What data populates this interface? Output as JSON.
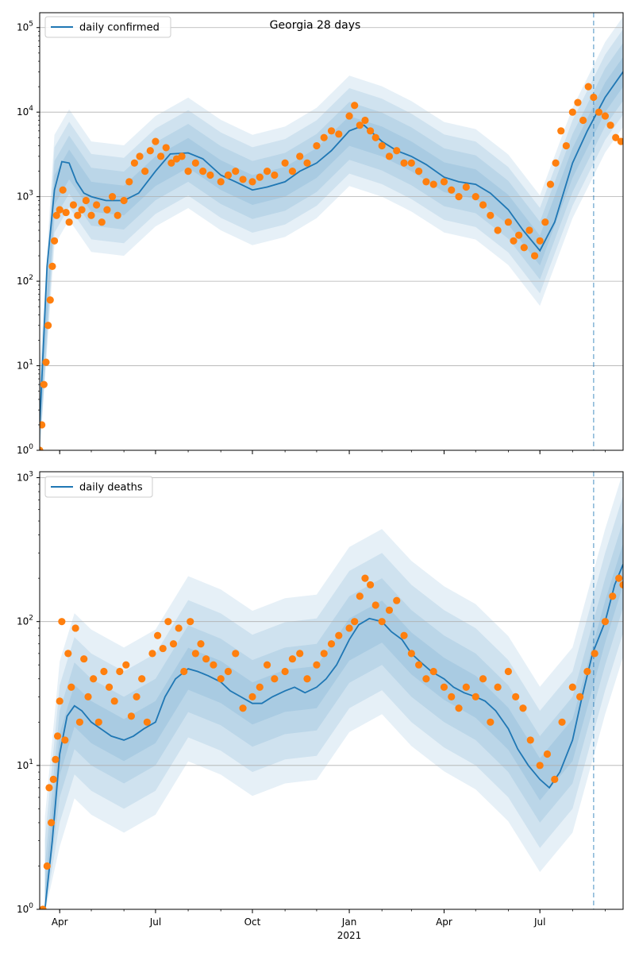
{
  "chart_data": [
    {
      "type": "line",
      "title": "Georgia 28 days",
      "yscale": "log",
      "ylim": [
        1,
        150000
      ],
      "xlim": [
        "2020-03-13",
        "2021-09-18"
      ],
      "x_ticks": [
        "Apr",
        "Jul",
        "Oct",
        "Jan",
        "Apr",
        "Jul"
      ],
      "x_tick_dates": [
        "2020-04-01",
        "2020-07-01",
        "2020-10-01",
        "2021-01-01",
        "2021-04-01",
        "2021-07-01"
      ],
      "y_ticks": [
        1,
        10,
        100,
        1000,
        10000,
        100000
      ],
      "y_tick_labels": [
        {
          "base": "10",
          "exp": "0"
        },
        {
          "base": "10",
          "exp": "1"
        },
        {
          "base": "10",
          "exp": "2"
        },
        {
          "base": "10",
          "exp": "3"
        },
        {
          "base": "10",
          "exp": "4"
        },
        {
          "base": "10",
          "exp": "5"
        }
      ],
      "grid": "horizontal",
      "legend": {
        "location": "top-left",
        "entries": [
          "daily confirmed"
        ]
      },
      "vline_date": "2021-08-21",
      "colors": {
        "line": "#1f77b4",
        "points": "#ff7f0e",
        "band": "#1f77b4"
      },
      "series": [
        {
          "name": "daily confirmed",
          "kind": "line",
          "x": [
            "2020-03-13",
            "2020-03-20",
            "2020-03-27",
            "2020-04-03",
            "2020-04-10",
            "2020-04-17",
            "2020-04-24",
            "2020-05-01",
            "2020-05-15",
            "2020-06-01",
            "2020-06-15",
            "2020-07-01",
            "2020-07-15",
            "2020-08-01",
            "2020-08-15",
            "2020-09-01",
            "2020-09-15",
            "2020-10-01",
            "2020-10-15",
            "2020-11-01",
            "2020-11-15",
            "2020-12-01",
            "2020-12-15",
            "2021-01-01",
            "2021-01-15",
            "2021-02-01",
            "2021-02-15",
            "2021-03-01",
            "2021-03-15",
            "2021-04-01",
            "2021-04-15",
            "2021-05-01",
            "2021-05-15",
            "2021-06-01",
            "2021-06-15",
            "2021-07-01",
            "2021-07-15",
            "2021-08-01",
            "2021-08-15",
            "2021-09-01",
            "2021-09-18"
          ],
          "y": [
            2,
            150,
            1200,
            2600,
            2500,
            1500,
            1100,
            1000,
            900,
            900,
            1100,
            2000,
            3200,
            3300,
            2800,
            1800,
            1500,
            1200,
            1300,
            1500,
            2000,
            2500,
            3500,
            6000,
            7000,
            4500,
            3500,
            3000,
            2400,
            1700,
            1500,
            1400,
            1100,
            700,
            400,
            230,
            500,
            2500,
            6000,
            15000,
            30000
          ]
        },
        {
          "name": "",
          "kind": "band",
          "x": [
            "2020-03-13",
            "2020-03-27",
            "2020-04-10",
            "2020-05-01",
            "2020-06-01",
            "2020-07-01",
            "2020-08-01",
            "2020-09-01",
            "2020-10-01",
            "2020-11-01",
            "2020-12-01",
            "2021-01-01",
            "2021-02-01",
            "2021-03-01",
            "2021-04-01",
            "2021-05-01",
            "2021-06-01",
            "2021-07-01",
            "2021-08-01",
            "2021-09-01",
            "2021-09-18"
          ],
          "center": [
            2,
            1200,
            2400,
            1000,
            900,
            2000,
            3300,
            1800,
            1200,
            1500,
            2500,
            6000,
            4500,
            3000,
            1700,
            1400,
            700,
            230,
            2500,
            15000,
            30000
          ],
          "widths": [
            1.5,
            2.2,
            3.2,
            4.5
          ]
        },
        {
          "name": "",
          "kind": "points",
          "x": [
            "2020-03-13",
            "2020-03-15",
            "2020-03-17",
            "2020-03-19",
            "2020-03-21",
            "2020-03-23",
            "2020-03-25",
            "2020-03-27",
            "2020-03-29",
            "2020-04-01",
            "2020-04-04",
            "2020-04-07",
            "2020-04-10",
            "2020-04-14",
            "2020-04-18",
            "2020-04-22",
            "2020-04-26",
            "2020-05-01",
            "2020-05-06",
            "2020-05-11",
            "2020-05-16",
            "2020-05-21",
            "2020-05-26",
            "2020-06-01",
            "2020-06-06",
            "2020-06-11",
            "2020-06-16",
            "2020-06-21",
            "2020-06-26",
            "2020-07-01",
            "2020-07-06",
            "2020-07-11",
            "2020-07-16",
            "2020-07-21",
            "2020-07-26",
            "2020-08-01",
            "2020-08-08",
            "2020-08-15",
            "2020-08-22",
            "2020-09-01",
            "2020-09-08",
            "2020-09-15",
            "2020-09-22",
            "2020-10-01",
            "2020-10-08",
            "2020-10-15",
            "2020-10-22",
            "2020-11-01",
            "2020-11-08",
            "2020-11-15",
            "2020-11-22",
            "2020-12-01",
            "2020-12-08",
            "2020-12-15",
            "2020-12-22",
            "2021-01-01",
            "2021-01-06",
            "2021-01-11",
            "2021-01-16",
            "2021-01-21",
            "2021-01-26",
            "2021-02-01",
            "2021-02-08",
            "2021-02-15",
            "2021-02-22",
            "2021-03-01",
            "2021-03-08",
            "2021-03-15",
            "2021-03-22",
            "2021-04-01",
            "2021-04-08",
            "2021-04-15",
            "2021-04-22",
            "2021-05-01",
            "2021-05-08",
            "2021-05-15",
            "2021-05-22",
            "2021-06-01",
            "2021-06-06",
            "2021-06-11",
            "2021-06-16",
            "2021-06-21",
            "2021-06-26",
            "2021-07-01",
            "2021-07-06",
            "2021-07-11",
            "2021-07-16",
            "2021-07-21",
            "2021-07-26",
            "2021-08-01",
            "2021-08-06",
            "2021-08-11",
            "2021-08-16",
            "2021-08-21",
            "2021-08-26",
            "2021-09-01",
            "2021-09-06",
            "2021-09-11",
            "2021-09-16"
          ],
          "y": [
            1,
            2,
            6,
            11,
            30,
            60,
            150,
            300,
            600,
            700,
            1200,
            650,
            500,
            800,
            600,
            700,
            900,
            600,
            800,
            500,
            700,
            1000,
            600,
            900,
            1500,
            2500,
            3000,
            2000,
            3500,
            4500,
            3000,
            3800,
            2500,
            2800,
            3000,
            2000,
            2500,
            2000,
            1800,
            1500,
            1800,
            2000,
            1600,
            1500,
            1700,
            2000,
            1800,
            2500,
            2000,
            3000,
            2500,
            4000,
            5000,
            6000,
            5500,
            9000,
            12000,
            7000,
            8000,
            6000,
            5000,
            4000,
            3000,
            3500,
            2500,
            2500,
            2000,
            1500,
            1400,
            1500,
            1200,
            1000,
            1300,
            1000,
            800,
            600,
            400,
            500,
            300,
            350,
            250,
            400,
            200,
            300,
            500,
            1400,
            2500,
            6000,
            4000,
            10000,
            13000,
            8000,
            20000,
            15000,
            10000,
            9000,
            7000,
            5000,
            4500
          ]
        }
      ]
    },
    {
      "type": "line",
      "title": "",
      "yscale": "log",
      "ylim": [
        1,
        1100
      ],
      "xlim": [
        "2020-03-13",
        "2021-09-18"
      ],
      "x_ticks": [
        "Apr",
        "Jul",
        "Oct",
        "Jan",
        "Apr",
        "Jul"
      ],
      "x_tick_dates": [
        "2020-04-01",
        "2020-07-01",
        "2020-10-01",
        "2021-01-01",
        "2021-04-01",
        "2021-07-01"
      ],
      "year_label": "2021",
      "y_ticks": [
        1,
        10,
        100,
        1000
      ],
      "y_tick_labels": [
        {
          "base": "10",
          "exp": "0"
        },
        {
          "base": "10",
          "exp": "1"
        },
        {
          "base": "10",
          "exp": "2"
        },
        {
          "base": "10",
          "exp": "3"
        }
      ],
      "grid": "horizontal",
      "legend": {
        "location": "top-left",
        "entries": [
          "daily deaths"
        ]
      },
      "vline_date": "2021-08-21",
      "colors": {
        "line": "#1f77b4",
        "points": "#ff7f0e",
        "band": "#1f77b4"
      },
      "series": [
        {
          "name": "daily deaths",
          "kind": "line",
          "x": [
            "2020-03-18",
            "2020-03-25",
            "2020-04-01",
            "2020-04-08",
            "2020-04-15",
            "2020-04-22",
            "2020-05-01",
            "2020-05-10",
            "2020-05-20",
            "2020-06-01",
            "2020-06-10",
            "2020-06-20",
            "2020-07-01",
            "2020-07-10",
            "2020-07-20",
            "2020-08-01",
            "2020-08-10",
            "2020-08-20",
            "2020-09-01",
            "2020-09-10",
            "2020-09-20",
            "2020-10-01",
            "2020-10-10",
            "2020-10-20",
            "2020-11-01",
            "2020-11-10",
            "2020-11-20",
            "2020-12-01",
            "2020-12-10",
            "2020-12-20",
            "2021-01-01",
            "2021-01-10",
            "2021-01-20",
            "2021-02-01",
            "2021-02-10",
            "2021-02-20",
            "2021-03-01",
            "2021-03-10",
            "2021-03-20",
            "2021-04-01",
            "2021-04-10",
            "2021-04-20",
            "2021-05-01",
            "2021-05-10",
            "2021-05-20",
            "2021-06-01",
            "2021-06-10",
            "2021-06-20",
            "2021-07-01",
            "2021-07-10",
            "2021-07-20",
            "2021-08-01",
            "2021-08-10",
            "2021-08-20",
            "2021-09-01",
            "2021-09-10",
            "2021-09-18"
          ],
          "y": [
            1,
            3,
            12,
            22,
            26,
            24,
            20,
            18,
            16,
            15,
            16,
            18,
            20,
            30,
            40,
            47,
            45,
            42,
            38,
            33,
            30,
            27,
            27,
            30,
            33,
            35,
            32,
            35,
            40,
            50,
            75,
            95,
            105,
            100,
            85,
            75,
            60,
            52,
            45,
            40,
            35,
            32,
            30,
            28,
            24,
            18,
            13,
            10,
            8,
            7,
            9,
            15,
            30,
            60,
            100,
            180,
            250
          ]
        },
        {
          "name": "",
          "kind": "band",
          "x": [
            "2020-03-18",
            "2020-04-01",
            "2020-04-15",
            "2020-05-01",
            "2020-06-01",
            "2020-07-01",
            "2020-08-01",
            "2020-09-01",
            "2020-10-01",
            "2020-11-01",
            "2020-12-01",
            "2021-01-01",
            "2021-02-01",
            "2021-03-01",
            "2021-04-01",
            "2021-05-01",
            "2021-06-01",
            "2021-07-01",
            "2021-08-01",
            "2021-09-01",
            "2021-09-18"
          ],
          "center": [
            1,
            12,
            26,
            20,
            15,
            20,
            47,
            38,
            27,
            33,
            35,
            75,
            100,
            60,
            40,
            30,
            18,
            8,
            15,
            100,
            250
          ],
          "widths": [
            1.4,
            2.0,
            3.0,
            4.4
          ]
        },
        {
          "name": "",
          "kind": "points",
          "x": [
            "2020-03-16",
            "2020-03-20",
            "2020-03-22",
            "2020-03-24",
            "2020-03-26",
            "2020-03-28",
            "2020-03-30",
            "2020-04-01",
            "2020-04-03",
            "2020-04-06",
            "2020-04-09",
            "2020-04-12",
            "2020-04-16",
            "2020-04-20",
            "2020-04-24",
            "2020-04-28",
            "2020-05-03",
            "2020-05-08",
            "2020-05-13",
            "2020-05-18",
            "2020-05-23",
            "2020-05-28",
            "2020-06-03",
            "2020-06-08",
            "2020-06-13",
            "2020-06-18",
            "2020-06-23",
            "2020-06-28",
            "2020-07-03",
            "2020-07-08",
            "2020-07-13",
            "2020-07-18",
            "2020-07-23",
            "2020-07-28",
            "2020-08-03",
            "2020-08-08",
            "2020-08-13",
            "2020-08-18",
            "2020-08-25",
            "2020-09-01",
            "2020-09-08",
            "2020-09-15",
            "2020-09-22",
            "2020-10-01",
            "2020-10-08",
            "2020-10-15",
            "2020-10-22",
            "2020-11-01",
            "2020-11-08",
            "2020-11-15",
            "2020-11-22",
            "2020-12-01",
            "2020-12-08",
            "2020-12-15",
            "2020-12-22",
            "2021-01-01",
            "2021-01-06",
            "2021-01-11",
            "2021-01-16",
            "2021-01-21",
            "2021-01-26",
            "2021-02-01",
            "2021-02-08",
            "2021-02-15",
            "2021-02-22",
            "2021-03-01",
            "2021-03-08",
            "2021-03-15",
            "2021-03-22",
            "2021-04-01",
            "2021-04-08",
            "2021-04-15",
            "2021-04-22",
            "2021-05-01",
            "2021-05-08",
            "2021-05-15",
            "2021-05-22",
            "2021-06-01",
            "2021-06-08",
            "2021-06-15",
            "2021-06-22",
            "2021-07-01",
            "2021-07-08",
            "2021-07-15",
            "2021-07-22",
            "2021-08-01",
            "2021-08-08",
            "2021-08-15",
            "2021-08-22",
            "2021-09-01",
            "2021-09-08",
            "2021-09-14",
            "2021-09-18"
          ],
          "y": [
            1,
            2,
            7,
            4,
            8,
            11,
            16,
            28,
            100,
            15,
            60,
            35,
            90,
            20,
            55,
            30,
            40,
            20,
            45,
            35,
            28,
            45,
            50,
            22,
            30,
            40,
            20,
            60,
            80,
            65,
            100,
            70,
            90,
            45,
            100,
            60,
            70,
            55,
            50,
            40,
            45,
            60,
            25,
            30,
            35,
            50,
            40,
            45,
            55,
            60,
            40,
            50,
            60,
            70,
            80,
            90,
            100,
            150,
            200,
            180,
            130,
            100,
            120,
            140,
            80,
            60,
            50,
            40,
            45,
            35,
            30,
            25,
            35,
            30,
            40,
            20,
            35,
            45,
            30,
            25,
            15,
            10,
            12,
            8,
            20,
            35,
            30,
            45,
            60,
            100,
            150,
            200,
            180
          ]
        }
      ]
    }
  ]
}
